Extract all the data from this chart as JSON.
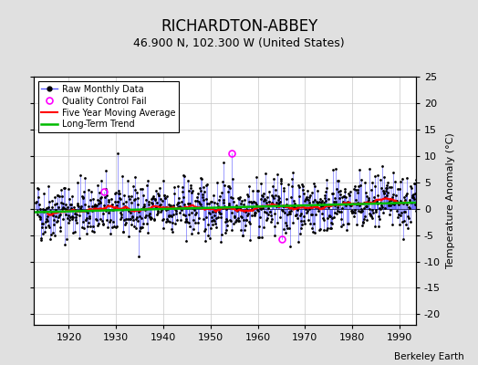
{
  "title": "RICHARDTON-ABBEY",
  "subtitle": "46.900 N, 102.300 W (United States)",
  "credit": "Berkeley Earth",
  "ylabel_right": "Temperature Anomaly (°C)",
  "xlim": [
    1912.5,
    1993.5
  ],
  "ylim": [
    -22,
    25
  ],
  "xticks": [
    1920,
    1930,
    1940,
    1950,
    1960,
    1970,
    1980,
    1990
  ],
  "yticks_right": [
    -20,
    -15,
    -10,
    -5,
    0,
    5,
    10,
    15,
    20,
    25
  ],
  "background_color": "#e0e0e0",
  "plot_bg_color": "#ffffff",
  "grid_color": "#c8c8c8",
  "raw_line_color": "#5555ff",
  "raw_marker_color": "#000000",
  "ma_color": "#ff0000",
  "trend_color": "#00bb00",
  "qc_fail_color": "#ff00ff",
  "seed": 42,
  "year_start": 1913,
  "year_end": 1993,
  "qc_fails": [
    {
      "year": 1927,
      "month": 6,
      "value": 3.2
    },
    {
      "year": 1954,
      "month": 7,
      "value": 10.5
    },
    {
      "year": 1965,
      "month": 3,
      "value": -5.8
    }
  ],
  "title_fontsize": 12,
  "subtitle_fontsize": 9,
  "tick_fontsize": 8,
  "ylabel_fontsize": 8
}
